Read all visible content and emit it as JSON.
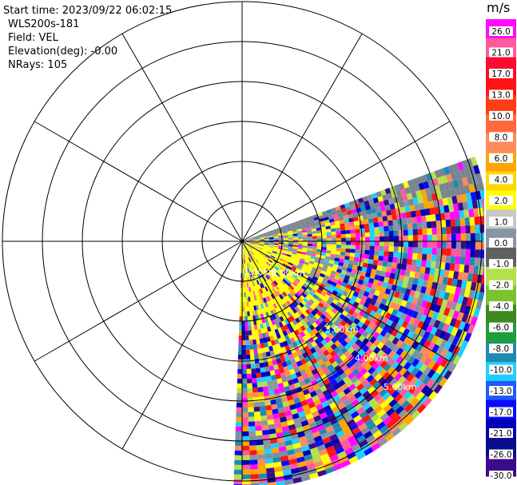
{
  "header": {
    "start_time": "Start time: 2023/09/22 06:02:15",
    "instrument": "WLS200s-181",
    "field": "Field: VEL",
    "elevation": "Elevation(deg): -0.00",
    "nrays": "NRays: 105"
  },
  "range_labels": [
    "1.00km",
    "2.00km",
    "3.00km",
    "4.00km",
    "5.00km"
  ],
  "colorbar": {
    "unit": "m/s",
    "ticks": [
      "26.0",
      "21.0",
      "17.0",
      "13.0",
      "10.0",
      "8.0",
      "6.0",
      "4.0",
      "2.0",
      "1.0",
      "0.0",
      "-1.0",
      "-2.0",
      "-4.0",
      "-6.0",
      "-8.0",
      "-10.0",
      "-13.0",
      "-17.0",
      "-21.0",
      "-26.0",
      "-30.0"
    ],
    "colors": [
      "#ff0aff",
      "#ff5a9c",
      "#ff0a30",
      "#ff1414",
      "#ff3c14",
      "#ff6a3c",
      "#ff8a5a",
      "#ffa500",
      "#ffd700",
      "#ffff00",
      "#c8c8c8",
      "#8a95a3",
      "#606060",
      "#b3e04a",
      "#7ac32e",
      "#3c8a1e",
      "#1e9e3c",
      "#1e8ab4",
      "#1ecfff",
      "#1e5aff",
      "#0a0aff",
      "#0000b4",
      "#0a0a8c",
      "#3c0a8c"
    ]
  }
}
